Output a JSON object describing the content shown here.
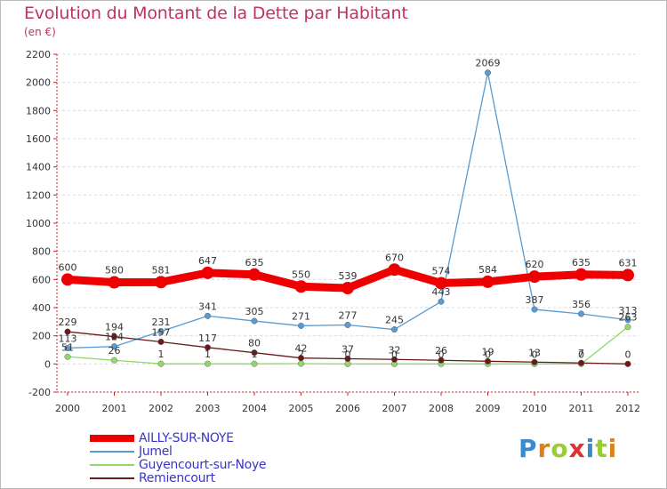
{
  "title": "Evolution du Montant de la Dette par Habitant",
  "subtitle": "(en €)",
  "colors": {
    "title": "#c0306a",
    "axis": "#cc2222",
    "grid": "#d8d8e8",
    "label": "#333333",
    "legend_text": "#3a34c8"
  },
  "chart_data": {
    "type": "line",
    "title": "Evolution du Montant de la Dette par Habitant",
    "subtitle": "(en €)",
    "x": [
      "2000",
      "2001",
      "2002",
      "2003",
      "2004",
      "2005",
      "2006",
      "2007",
      "2008",
      "2009",
      "2010",
      "2011",
      "2012"
    ],
    "ylim": [
      -200,
      2200
    ],
    "yticks": [
      -200,
      0,
      200,
      400,
      600,
      800,
      1000,
      1200,
      1400,
      1600,
      1800,
      2000,
      2200
    ],
    "grid": "horizontal dashed",
    "legend_position": "bottom-left",
    "series": [
      {
        "name": "AILLY-SUR-NOYE",
        "color": "#ee0000",
        "line_style": "thick",
        "values": [
          600,
          580,
          581,
          647,
          635,
          550,
          539,
          670,
          574,
          584,
          620,
          635,
          631
        ]
      },
      {
        "name": "Jumel",
        "color": "#5a9ad0",
        "line_style": "thin",
        "values": [
          113,
          124,
          231,
          341,
          305,
          271,
          277,
          245,
          443,
          2069,
          387,
          356,
          313
        ]
      },
      {
        "name": "Guyencourt-sur-Noye",
        "color": "#8fd86a",
        "line_style": "thin",
        "values": [
          51,
          26,
          1,
          1,
          1,
          2,
          0,
          0,
          0,
          0,
          0,
          0,
          263
        ]
      },
      {
        "name": "Remiencourt",
        "color": "#6b1a1a",
        "line_style": "thin",
        "values": [
          229,
          194,
          157,
          117,
          80,
          42,
          37,
          32,
          26,
          19,
          13,
          7,
          0
        ]
      }
    ]
  },
  "point_labels": {
    "AILLY-SUR-NOYE": [
      "600",
      "580",
      "581",
      "647",
      "635",
      "550",
      "539",
      "670",
      "574",
      "584",
      "620",
      "635",
      "631"
    ],
    "Jumel": [
      "113",
      "124",
      "231",
      "341",
      "305",
      "271",
      "277",
      "245",
      "443",
      "2069",
      "387",
      "356",
      "313"
    ],
    "Guyencourt-sur-Noye": [
      "51",
      "26",
      "1",
      "1",
      "1",
      "2",
      "0",
      "0",
      "0",
      "0",
      "0",
      "0",
      "263"
    ],
    "Remiencourt": [
      "229",
      "194",
      "157",
      "117",
      "80",
      "42",
      "37",
      "32",
      "26",
      "19",
      "13",
      "7",
      "0"
    ]
  },
  "logo": {
    "text": "Proxiti",
    "letter_colors": [
      "#3a8ad0",
      "#e0801a",
      "#9acd32",
      "#e03030",
      "#3a8ad0",
      "#9acd32",
      "#e0801a"
    ]
  }
}
